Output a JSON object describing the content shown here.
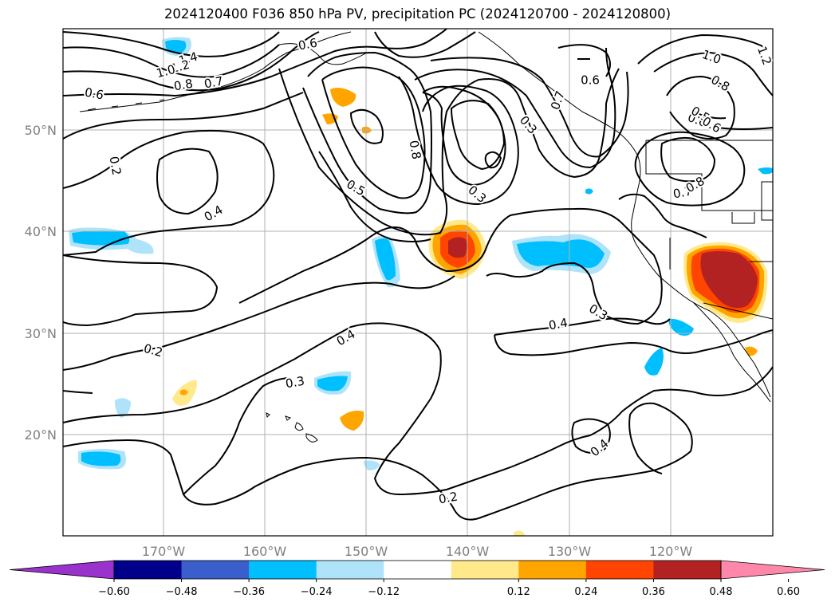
{
  "title": "2024120400 F036 850 hPa PV, precipitation PC (2024120700 - 2024120800)",
  "lon_ticks": [
    "170°W",
    "160°W",
    "150°W",
    "140°W",
    "130°W",
    "120°W"
  ],
  "lat_ticks": [
    "50°N",
    "40°N",
    "30°N",
    "20°N"
  ],
  "colorbar": {
    "ticks": [
      "−0.60",
      "−0.48",
      "−0.36",
      "−0.24",
      "−0.12",
      "0.12",
      "0.24",
      "0.36",
      "0.48",
      "0.60"
    ],
    "colors": [
      "#9933cc",
      "#00008b",
      "#3a5fcd",
      "#00bfff",
      "#aee3f9",
      "#ffffff",
      "#ffe98a",
      "#ffa500",
      "#ff4500",
      "#b22222",
      "#ff88aa"
    ]
  },
  "contour_labels": [
    "1.4",
    "1.2",
    "1.0",
    "0.8",
    "0.7",
    "0.6",
    "0.6",
    "0.2",
    "0.4",
    "0.5",
    "0.8",
    "0.3",
    "0.7",
    "0.6",
    "0.6",
    "1.0",
    "0.8",
    "0.5",
    "0.6",
    "0.7",
    "0.8",
    "0.4",
    "0.3",
    "0.4",
    "0.2",
    "0.3",
    "0.4",
    "0.2",
    "0.3",
    "1.2"
  ],
  "colors": {
    "land": "#000000",
    "grid": "#b0b0b0",
    "contour": "#000000"
  }
}
